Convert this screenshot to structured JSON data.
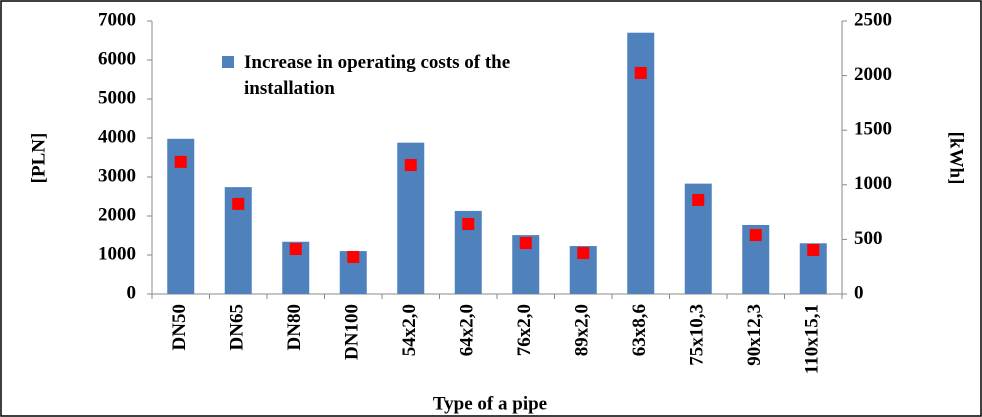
{
  "chart_data": {
    "type": "bar",
    "x_label": "Type of a pipe",
    "y_label": "[PLN]",
    "y2_label": "[kWh]",
    "categories": [
      "DN50",
      "DN65",
      "DN80",
      "DN100",
      "54x2,0",
      "64x2,0",
      "76x2,0",
      "89x2,0",
      "63x8,6",
      "75x10,3",
      "90x12,3",
      "110x15,1"
    ],
    "series": [
      {
        "name": "Increase in operating costs of the installation",
        "color": "#4f81bd",
        "values": [
          3980,
          2740,
          1340,
          1100,
          3880,
          2130,
          1510,
          1230,
          6700,
          2830,
          1770,
          1300
        ]
      },
      {
        "color": "#ff0000",
        "axis": "y2",
        "values": [
          1210,
          825,
          412,
          339,
          1181,
          641,
          467,
          375,
          2024,
          861,
          540,
          403
        ]
      }
    ],
    "ylim": [
      0,
      7000
    ],
    "yticks": [
      0,
      1000,
      2000,
      3000,
      4000,
      5000,
      6000,
      7000
    ],
    "y2lim": [
      0,
      2500
    ],
    "y2ticks": [
      0,
      500,
      1000,
      1500,
      2000,
      2500
    ]
  }
}
